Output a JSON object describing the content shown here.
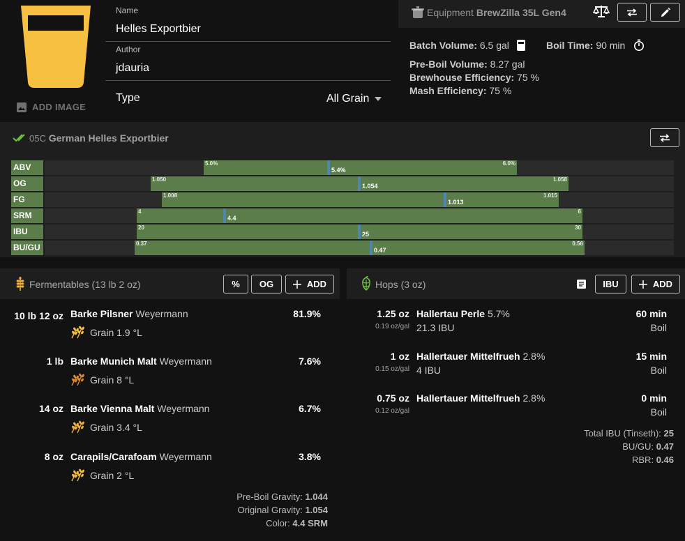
{
  "colors": {
    "beer": "#f8c040",
    "accent_green": "#5a7d4a",
    "marker_blue": "#4f87b0"
  },
  "image": {
    "add_label": "ADD IMAGE"
  },
  "recipe": {
    "name_label": "Name",
    "name": "Helles Exportbier",
    "author_label": "Author",
    "author": "jdauria",
    "type_label": "Type",
    "type": "All Grain"
  },
  "equipment": {
    "prefix": "Equipment",
    "name": "BrewZilla 35L Gen4",
    "batch_label": "Batch Volume:",
    "batch": "6.5 gal",
    "boil_label": "Boil Time:",
    "boil": "90 min",
    "preboil_label": "Pre-Boil Volume:",
    "preboil": "8.27 gal",
    "brewhouse_label": "Brewhouse Efficiency:",
    "brewhouse": "75 %",
    "mash_label": "Mash Efficiency:",
    "mash": "75 %"
  },
  "style": {
    "code": "05C",
    "name": "German Helles Exportbier",
    "rows": [
      {
        "label": "ABV",
        "low": "5.0%",
        "high": "6.0%",
        "current": "5.4%",
        "lo_frac": 0.253,
        "hi_frac": 0.75,
        "cur_frac": 0.451
      },
      {
        "label": "OG",
        "low": "1.050",
        "high": "1.058",
        "current": "1.054",
        "lo_frac": 0.169,
        "hi_frac": 0.833,
        "cur_frac": 0.5
      },
      {
        "label": "FG",
        "low": "1.008",
        "high": "1.015",
        "current": "1.013",
        "lo_frac": 0.186,
        "hi_frac": 0.817,
        "cur_frac": 0.636
      },
      {
        "label": "SRM",
        "low": "4",
        "high": "6",
        "current": "4.4",
        "lo_frac": 0.146,
        "hi_frac": 0.855,
        "cur_frac": 0.286
      },
      {
        "label": "IBU",
        "low": "20",
        "high": "30",
        "current": "25",
        "lo_frac": 0.146,
        "hi_frac": 0.855,
        "cur_frac": 0.5
      },
      {
        "label": "BU/GU",
        "low": "0.37",
        "high": "0.56",
        "current": "0.47",
        "lo_frac": 0.143,
        "hi_frac": 0.858,
        "cur_frac": 0.519
      }
    ]
  },
  "fermentables": {
    "title": "Fermentables (13 lb 2 oz)",
    "pct_btn": "%",
    "og_btn": "OG",
    "add_btn": "ADD",
    "items": [
      {
        "amount": "10 lb 12 oz",
        "name": "Barke Pilsner",
        "brand": "Weyermann",
        "pct": "81.9%",
        "kind": "Grain",
        "color": "1.9 °L",
        "grain_color": "#f8c040"
      },
      {
        "amount": "1 lb",
        "name": "Barke Munich Malt",
        "brand": "Weyermann",
        "pct": "7.6%",
        "kind": "Grain",
        "color": "8 °L",
        "grain_color": "#e08a2c"
      },
      {
        "amount": "14 oz",
        "name": "Barke Vienna Malt",
        "brand": "Weyermann",
        "pct": "6.7%",
        "kind": "Grain",
        "color": "3.4 °L",
        "grain_color": "#f2b03a"
      },
      {
        "amount": "8 oz",
        "name": "Carapils/Carafoam",
        "brand": "Weyermann",
        "pct": "3.8%",
        "kind": "Grain",
        "color": "2 °L",
        "grain_color": "#f6bc3e"
      }
    ],
    "preboil_label": "Pre-Boil Gravity:",
    "preboil": "1.044",
    "og_label": "Original Gravity:",
    "og": "1.054",
    "color_label": "Color:",
    "color": "4.4 SRM"
  },
  "hops": {
    "title": "Hops (3 oz)",
    "ibu_btn": "IBU",
    "add_btn": "ADD",
    "items": [
      {
        "amount": "1.25 oz",
        "per_gal": "0.19 oz/gal",
        "name": "Hallertau Perle",
        "aa": "5.7%",
        "ibu": "21.3 IBU",
        "time": "60 min",
        "use": "Boil"
      },
      {
        "amount": "1 oz",
        "per_gal": "0.15 oz/gal",
        "name": "Hallertauer Mittelfrueh",
        "aa": "2.8%",
        "ibu": "4 IBU",
        "time": "15 min",
        "use": "Boil"
      },
      {
        "amount": "0.75 oz",
        "per_gal": "0.12 oz/gal",
        "name": "Hallertauer Mittelfrueh",
        "aa": "2.8%",
        "ibu": "",
        "time": "0 min",
        "use": "Boil"
      }
    ],
    "total_label": "Total IBU (Tinseth):",
    "total": "25",
    "bugu_label": "BU/GU:",
    "bugu": "0.47",
    "rbr_label": "RBR:",
    "rbr": "0.46"
  }
}
